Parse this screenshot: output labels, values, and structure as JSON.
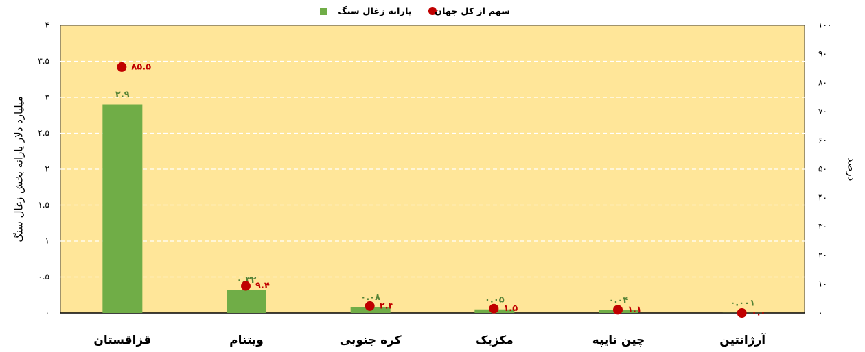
{
  "chart_data": {
    "type": "bar",
    "ylabel": "میلیارد دلار یارانه بخش زغال سنگ",
    "y2label": "درصد",
    "categories": [
      "قزاقستان",
      "ویتنام",
      "کره جنوبی",
      "مکزیک",
      "چین تایپه",
      "آرژانتین"
    ],
    "series": [
      {
        "name": "یارانه زغال سنگ",
        "type": "bar",
        "color": "#70AD47",
        "values": [
          2.9,
          0.32,
          0.08,
          0.05,
          0.04,
          0.001
        ],
        "value_labels": [
          "۲.۹",
          "۰.۳۲",
          "۰.۰۸",
          "۰.۰۵",
          "۰.۰۴",
          "۰.۰۰۱"
        ]
      },
      {
        "name": "سهم از کل جهان",
        "type": "scatter",
        "axis": "y2",
        "color": "#C00000",
        "values": [
          85.5,
          9.4,
          2.4,
          1.5,
          1.1,
          0
        ],
        "value_labels": [
          "۸۵.۵",
          "۹.۴",
          "۲.۴",
          "۱.۵",
          "۱.۱",
          "۰.۰"
        ]
      }
    ],
    "ylim": [
      0,
      4
    ],
    "yticks": [
      {
        "value": 0,
        "label": "۰"
      },
      {
        "value": 0.5,
        "label": "۰.۵"
      },
      {
        "value": 1,
        "label": "۱"
      },
      {
        "value": 1.5,
        "label": "۱.۵"
      },
      {
        "value": 2,
        "label": "۲"
      },
      {
        "value": 2.5,
        "label": "۲.۵"
      },
      {
        "value": 3,
        "label": "۳"
      },
      {
        "value": 3.5,
        "label": "۳.۵"
      },
      {
        "value": 4,
        "label": "۴"
      }
    ],
    "y2lim": [
      0,
      100
    ],
    "y2ticks": [
      {
        "value": 0,
        "label": "۰"
      },
      {
        "value": 10,
        "label": "۱۰"
      },
      {
        "value": 20,
        "label": "۲۰"
      },
      {
        "value": 30,
        "label": "۳۰"
      },
      {
        "value": 40,
        "label": "۴۰"
      },
      {
        "value": 50,
        "label": "۵۰"
      },
      {
        "value": 60,
        "label": "۶۰"
      },
      {
        "value": 70,
        "label": "۷۰"
      },
      {
        "value": 80,
        "label": "۸۰"
      },
      {
        "value": 90,
        "label": "۹۰"
      },
      {
        "value": 100,
        "label": "۱۰۰"
      }
    ],
    "grid": true,
    "background": "#FFE699",
    "legend": "top"
  }
}
